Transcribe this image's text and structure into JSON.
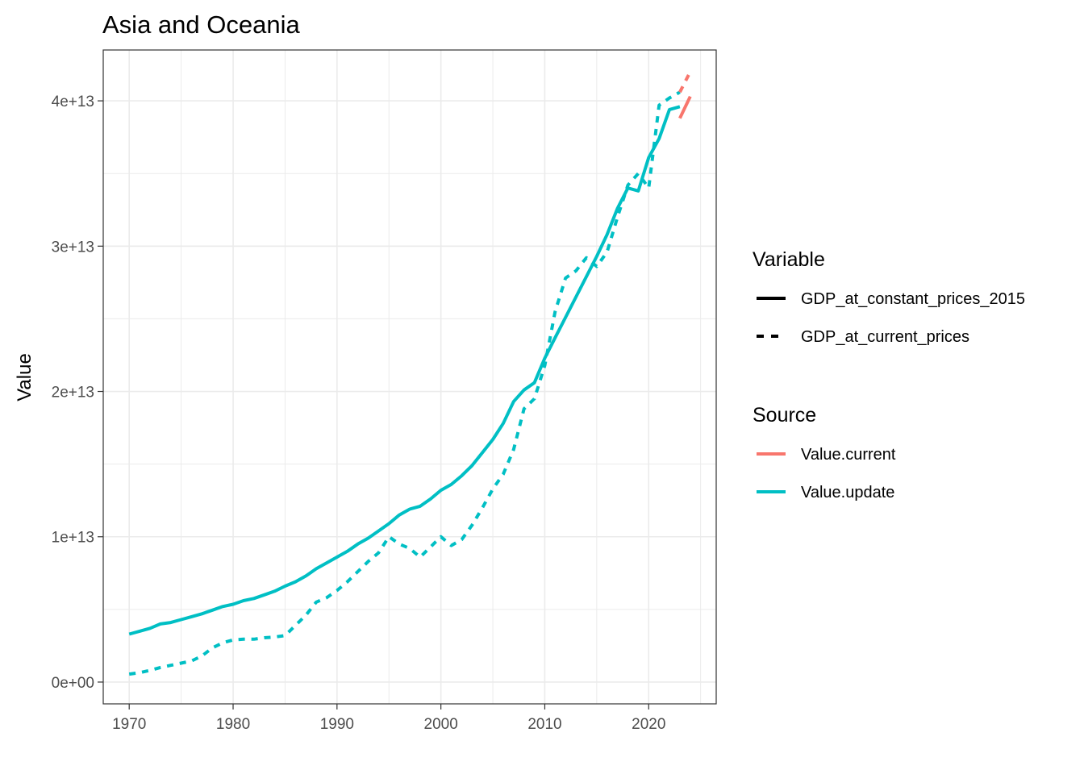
{
  "chart_data": {
    "type": "line",
    "title": "Asia and Oceania",
    "xlabel": "",
    "ylabel": "Value",
    "xlim": [
      1967.5,
      2026.5
    ],
    "ylim": [
      -1500000000000.0,
      43500000000000.0
    ],
    "x_ticks": [
      1970,
      1980,
      1990,
      2000,
      2010,
      2020
    ],
    "x_tick_labels": [
      "1970",
      "1980",
      "1990",
      "2000",
      "2010",
      "2020"
    ],
    "y_ticks": [
      0,
      10000000000000.0,
      20000000000000.0,
      30000000000000.0,
      40000000000000.0
    ],
    "y_tick_labels": [
      "0e+00",
      "1e+13",
      "2e+13",
      "3e+13",
      "4e+13"
    ],
    "grid": true,
    "legend_position": "right",
    "colors": {
      "Value.current": "#F8766D",
      "Value.update": "#00BFC4",
      "grid": "#ebebeb",
      "panel_border": "#333333"
    },
    "legends": [
      {
        "title": "Variable",
        "entries": [
          {
            "label": "GDP_at_constant_prices_2015",
            "linetype": "solid"
          },
          {
            "label": "GDP_at_current_prices",
            "linetype": "dashed"
          }
        ]
      },
      {
        "title": "Source",
        "entries": [
          {
            "label": "Value.current",
            "color": "#F8766D"
          },
          {
            "label": "Value.update",
            "color": "#00BFC4"
          }
        ]
      }
    ],
    "series": [
      {
        "variable": "GDP_at_constant_prices_2015",
        "source": "Value.update",
        "x": [
          1970,
          1971,
          1972,
          1973,
          1974,
          1975,
          1976,
          1977,
          1978,
          1979,
          1980,
          1981,
          1982,
          1983,
          1984,
          1985,
          1986,
          1987,
          1988,
          1989,
          1990,
          1991,
          1992,
          1993,
          1994,
          1995,
          1996,
          1997,
          1998,
          1999,
          2000,
          2001,
          2002,
          2003,
          2004,
          2005,
          2006,
          2007,
          2008,
          2009,
          2010,
          2011,
          2012,
          2013,
          2014,
          2015,
          2016,
          2017,
          2018,
          2019,
          2020,
          2021,
          2022,
          2023
        ],
        "values": [
          3300000000000.0,
          3500000000000.0,
          3700000000000.0,
          4000000000000.0,
          4100000000000.0,
          4300000000000.0,
          4500000000000.0,
          4700000000000.0,
          4950000000000.0,
          5200000000000.0,
          5350000000000.0,
          5600000000000.0,
          5750000000000.0,
          6000000000000.0,
          6250000000000.0,
          6600000000000.0,
          6900000000000.0,
          7300000000000.0,
          7800000000000.0,
          8200000000000.0,
          8600000000000.0,
          9000000000000.0,
          9500000000000.0,
          9900000000000.0,
          10400000000000.0,
          10900000000000.0,
          11500000000000.0,
          11900000000000.0,
          12100000000000.0,
          12600000000000.0,
          13200000000000.0,
          13600000000000.0,
          14200000000000.0,
          14900000000000.0,
          15800000000000.0,
          16700000000000.0,
          17800000000000.0,
          19300000000000.0,
          20100000000000.0,
          20600000000000.0,
          22300000000000.0,
          23700000000000.0,
          25100000000000.0,
          26500000000000.0,
          27900000000000.0,
          29300000000000.0,
          30800000000000.0,
          32600000000000.0,
          34000000000000.0,
          33800000000000.0,
          36100000000000.0,
          37400000000000.0,
          39400000000000.0,
          39600000000000.0
        ]
      },
      {
        "variable": "GDP_at_current_prices",
        "source": "Value.update",
        "x": [
          1970,
          1971,
          1972,
          1973,
          1974,
          1975,
          1976,
          1977,
          1978,
          1979,
          1980,
          1981,
          1982,
          1983,
          1984,
          1985,
          1986,
          1987,
          1988,
          1989,
          1990,
          1991,
          1992,
          1993,
          1994,
          1995,
          1996,
          1997,
          1998,
          1999,
          2000,
          2001,
          2002,
          2003,
          2004,
          2005,
          2006,
          2007,
          2008,
          2009,
          2010,
          2011,
          2012,
          2013,
          2014,
          2015,
          2016,
          2017,
          2018,
          2019,
          2020,
          2021,
          2022,
          2023
        ],
        "values": [
          550000000000.0,
          650000000000.0,
          800000000000.0,
          1000000000000.0,
          1150000000000.0,
          1300000000000.0,
          1450000000000.0,
          1800000000000.0,
          2350000000000.0,
          2700000000000.0,
          2900000000000.0,
          2950000000000.0,
          2950000000000.0,
          3050000000000.0,
          3100000000000.0,
          3200000000000.0,
          3900000000000.0,
          4600000000000.0,
          5500000000000.0,
          5800000000000.0,
          6300000000000.0,
          6900000000000.0,
          7600000000000.0,
          8300000000000.0,
          8900000000000.0,
          10000000000000.0,
          9500000000000.0,
          9200000000000.0,
          8600000000000.0,
          9300000000000.0,
          10000000000000.0,
          9400000000000.0,
          9800000000000.0,
          10800000000000.0,
          12000000000000.0,
          13300000000000.0,
          14300000000000.0,
          16000000000000.0,
          18800000000000.0,
          19500000000000.0,
          21800000000000.0,
          25500000000000.0,
          27800000000000.0,
          28300000000000.0,
          29200000000000.0,
          28600000000000.0,
          29600000000000.0,
          32000000000000.0,
          34200000000000.0,
          35000000000000.0,
          34000000000000.0,
          39700000000000.0,
          40200000000000.0,
          40600000000000.0
        ]
      },
      {
        "variable": "GDP_at_constant_prices_2015",
        "source": "Value.current",
        "x": [
          2023,
          2024
        ],
        "values": [
          38800000000000.0,
          40300000000000.0
        ]
      },
      {
        "variable": "GDP_at_current_prices",
        "source": "Value.current",
        "x": [
          2023,
          2024
        ],
        "values": [
          40600000000000.0,
          42000000000000.0
        ]
      }
    ]
  }
}
